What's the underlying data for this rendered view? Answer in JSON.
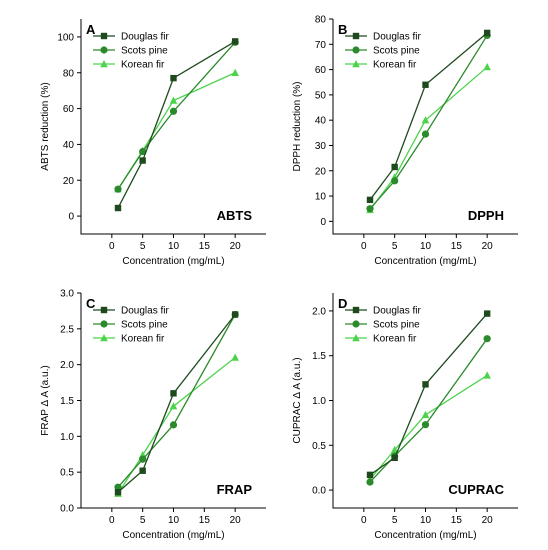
{
  "colors": {
    "Douglas fir": "#1e4a1e",
    "Scots pine": "#2b8a2b",
    "Korean fir": "#4cd34c"
  },
  "chart_data": [
    {
      "type": "line",
      "panel": "A",
      "annotation": "ABTS",
      "xlabel": "Concentration (mg/mL)",
      "ylabel": "ABTS reduction (%)",
      "xlim": [
        -5,
        25
      ],
      "ylim": [
        -10,
        110
      ],
      "xticks": [
        0,
        5,
        10,
        15,
        20
      ],
      "yticks": [
        0,
        20,
        40,
        60,
        80,
        100
      ],
      "x": [
        1,
        5,
        10,
        20
      ],
      "series": [
        {
          "name": "Douglas fir",
          "marker": "square",
          "values": [
            4.5,
            31,
            77,
            97.5
          ]
        },
        {
          "name": "Scots pine",
          "marker": "circle",
          "values": [
            15,
            36,
            58.5,
            97
          ]
        },
        {
          "name": "Korean fir",
          "marker": "triangle",
          "values": [
            15,
            36.5,
            64.5,
            80
          ]
        }
      ]
    },
    {
      "type": "line",
      "panel": "B",
      "annotation": "DPPH",
      "xlabel": "Concentration (mg/mL)",
      "ylabel": "DPPH reduction (%)",
      "xlim": [
        -5,
        25
      ],
      "ylim": [
        -5,
        80
      ],
      "xticks": [
        0,
        5,
        10,
        15,
        20
      ],
      "yticks": [
        0,
        10,
        20,
        30,
        40,
        50,
        60,
        70,
        80
      ],
      "x": [
        1,
        5,
        10,
        20
      ],
      "series": [
        {
          "name": "Douglas fir",
          "marker": "square",
          "values": [
            8.5,
            21.5,
            54,
            74.5
          ]
        },
        {
          "name": "Scots pine",
          "marker": "circle",
          "values": [
            5,
            16,
            34.5,
            73.5
          ]
        },
        {
          "name": "Korean fir",
          "marker": "triangle",
          "values": [
            4.5,
            17.5,
            40,
            61
          ]
        }
      ]
    },
    {
      "type": "line",
      "panel": "C",
      "annotation": "FRAP",
      "xlabel": "Concentration (mg/mL)",
      "ylabel": "FRAP Δ A (a.u.)",
      "xlim": [
        -5,
        25
      ],
      "ylim": [
        0,
        3
      ],
      "xticks": [
        0,
        5,
        10,
        15,
        20
      ],
      "yticks": [
        "0.0",
        "0.5",
        "1.0",
        "1.5",
        "2.0",
        "2.5",
        "3.0"
      ],
      "x": [
        1,
        5,
        10,
        20
      ],
      "series": [
        {
          "name": "Douglas fir",
          "marker": "square",
          "values": [
            0.22,
            0.52,
            1.6,
            2.7
          ]
        },
        {
          "name": "Scots pine",
          "marker": "circle",
          "values": [
            0.29,
            0.68,
            1.16,
            2.7
          ]
        },
        {
          "name": "Korean fir",
          "marker": "triangle",
          "values": [
            0.2,
            0.74,
            1.42,
            2.1
          ]
        }
      ]
    },
    {
      "type": "line",
      "panel": "D",
      "annotation": "CUPRAC",
      "xlabel": "Concentration (mg/mL)",
      "ylabel": "CUPRAC Δ A (a.u.)",
      "xlim": [
        -5,
        25
      ],
      "ylim": [
        -0.2,
        2.2
      ],
      "xticks": [
        0,
        5,
        10,
        15,
        20
      ],
      "yticks": [
        "0.0",
        "0.5",
        "1.0",
        "1.5",
        "2.0"
      ],
      "x": [
        1,
        5,
        10,
        20
      ],
      "series": [
        {
          "name": "Douglas fir",
          "marker": "square",
          "values": [
            0.17,
            0.36,
            1.18,
            1.97
          ]
        },
        {
          "name": "Scots pine",
          "marker": "circle",
          "values": [
            0.09,
            0.38,
            0.73,
            1.69
          ]
        },
        {
          "name": "Korean fir",
          "marker": "triangle",
          "values": [
            0.12,
            0.45,
            0.84,
            1.28
          ]
        }
      ]
    }
  ]
}
